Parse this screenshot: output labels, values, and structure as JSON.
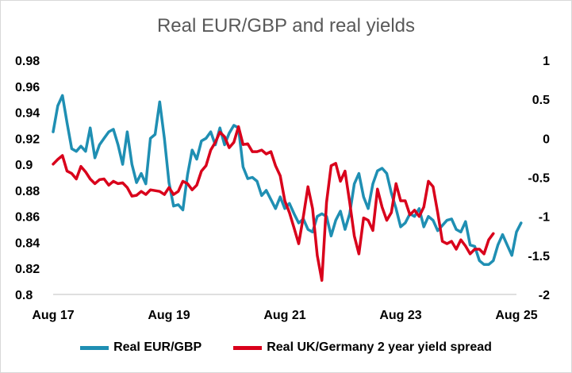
{
  "chart_data": {
    "type": "line",
    "title": "Real EUR/GBP and real yields",
    "x_ticks": [
      "Aug 17",
      "Aug 19",
      "Aug 21",
      "Aug 23",
      "Aug 25"
    ],
    "x_range": [
      "Aug 17",
      "Aug 25"
    ],
    "y_left": {
      "range": [
        0.8,
        0.98
      ],
      "ticks": [
        "0.98",
        "0.96",
        "0.94",
        "0.92",
        "0.9",
        "0.88",
        "0.86",
        "0.84",
        "0.82",
        "0.8"
      ]
    },
    "y_right": {
      "range": [
        -2,
        1
      ],
      "ticks": [
        "1",
        "0.5",
        "0",
        "-0.5",
        "-1",
        "-1.5",
        "-2"
      ]
    },
    "grid": false,
    "legend_position": "bottom",
    "series": [
      {
        "name": "Real EUR/GBP",
        "axis": "left",
        "color": "#1f8fb3",
        "points": [
          [
            0.0,
            0.925
          ],
          [
            0.25,
            0.945
          ],
          [
            0.5,
            0.953
          ],
          [
            0.75,
            0.932
          ],
          [
            1.0,
            0.912
          ],
          [
            1.25,
            0.91
          ],
          [
            1.5,
            0.914
          ],
          [
            1.75,
            0.91
          ],
          [
            2.0,
            0.928
          ],
          [
            2.25,
            0.905
          ],
          [
            2.5,
            0.915
          ],
          [
            2.75,
            0.92
          ],
          [
            3.0,
            0.925
          ],
          [
            3.25,
            0.927
          ],
          [
            3.5,
            0.915
          ],
          [
            3.75,
            0.9
          ],
          [
            4.0,
            0.925
          ],
          [
            4.25,
            0.9
          ],
          [
            4.5,
            0.886
          ],
          [
            4.75,
            0.893
          ],
          [
            5.0,
            0.885
          ],
          [
            5.25,
            0.92
          ],
          [
            5.5,
            0.923
          ],
          [
            5.75,
            0.948
          ],
          [
            6.0,
            0.92
          ],
          [
            6.25,
            0.886
          ],
          [
            6.5,
            0.868
          ],
          [
            6.75,
            0.869
          ],
          [
            7.0,
            0.865
          ],
          [
            7.25,
            0.892
          ],
          [
            7.5,
            0.911
          ],
          [
            7.75,
            0.904
          ],
          [
            8.0,
            0.918
          ],
          [
            8.25,
            0.92
          ],
          [
            8.5,
            0.925
          ],
          [
            8.75,
            0.915
          ],
          [
            9.0,
            0.928
          ],
          [
            9.25,
            0.915
          ],
          [
            9.5,
            0.924
          ],
          [
            9.75,
            0.93
          ],
          [
            10.0,
            0.928
          ],
          [
            10.25,
            0.898
          ],
          [
            10.5,
            0.889
          ],
          [
            10.75,
            0.89
          ],
          [
            11.0,
            0.887
          ],
          [
            11.25,
            0.876
          ],
          [
            11.5,
            0.88
          ],
          [
            11.75,
            0.873
          ],
          [
            12.0,
            0.866
          ],
          [
            12.25,
            0.875
          ],
          [
            12.5,
            0.866
          ],
          [
            12.75,
            0.87
          ],
          [
            13.0,
            0.862
          ],
          [
            13.25,
            0.855
          ],
          [
            13.5,
            0.858
          ],
          [
            13.75,
            0.85
          ],
          [
            14.0,
            0.848
          ],
          [
            14.25,
            0.86
          ],
          [
            14.5,
            0.862
          ],
          [
            14.75,
            0.86
          ],
          [
            15.0,
            0.845
          ],
          [
            15.25,
            0.857
          ],
          [
            15.5,
            0.864
          ],
          [
            15.75,
            0.85
          ],
          [
            16.0,
            0.862
          ],
          [
            16.25,
            0.885
          ],
          [
            16.5,
            0.893
          ],
          [
            16.75,
            0.875
          ],
          [
            17.0,
            0.866
          ],
          [
            17.25,
            0.885
          ],
          [
            17.5,
            0.895
          ],
          [
            17.75,
            0.897
          ],
          [
            18.0,
            0.893
          ],
          [
            18.25,
            0.878
          ],
          [
            18.5,
            0.866
          ],
          [
            18.75,
            0.852
          ],
          [
            19.0,
            0.855
          ],
          [
            19.25,
            0.862
          ],
          [
            19.5,
            0.86
          ],
          [
            19.75,
            0.866
          ],
          [
            20.0,
            0.852
          ],
          [
            20.25,
            0.86
          ],
          [
            20.5,
            0.857
          ],
          [
            20.75,
            0.849
          ],
          [
            21.0,
            0.853
          ],
          [
            21.25,
            0.857
          ],
          [
            21.5,
            0.858
          ],
          [
            21.75,
            0.85
          ],
          [
            22.0,
            0.848
          ],
          [
            22.25,
            0.856
          ],
          [
            22.5,
            0.838
          ],
          [
            22.75,
            0.837
          ],
          [
            23.0,
            0.826
          ],
          [
            23.25,
            0.823
          ],
          [
            23.5,
            0.823
          ],
          [
            23.75,
            0.826
          ],
          [
            24.0,
            0.838
          ],
          [
            24.25,
            0.846
          ],
          [
            24.5,
            0.838
          ],
          [
            24.75,
            0.83
          ],
          [
            25.0,
            0.848
          ],
          [
            25.25,
            0.855
          ]
        ]
      },
      {
        "name": "Real UK/Germany 2 year yield spread",
        "axis": "right",
        "color": "#d9001b",
        "points": [
          [
            0.0,
            -0.33
          ],
          [
            0.25,
            -0.27
          ],
          [
            0.5,
            -0.22
          ],
          [
            0.75,
            -0.42
          ],
          [
            1.0,
            -0.45
          ],
          [
            1.25,
            -0.52
          ],
          [
            1.5,
            -0.36
          ],
          [
            1.75,
            -0.43
          ],
          [
            2.0,
            -0.52
          ],
          [
            2.25,
            -0.58
          ],
          [
            2.5,
            -0.53
          ],
          [
            2.75,
            -0.52
          ],
          [
            3.0,
            -0.6
          ],
          [
            3.25,
            -0.55
          ],
          [
            3.5,
            -0.58
          ],
          [
            3.75,
            -0.57
          ],
          [
            4.0,
            -0.63
          ],
          [
            4.25,
            -0.74
          ],
          [
            4.5,
            -0.73
          ],
          [
            4.75,
            -0.68
          ],
          [
            5.0,
            -0.72
          ],
          [
            5.25,
            -0.66
          ],
          [
            5.5,
            -0.67
          ],
          [
            5.75,
            -0.68
          ],
          [
            6.0,
            -0.72
          ],
          [
            6.25,
            -0.63
          ],
          [
            6.5,
            -0.72
          ],
          [
            6.75,
            -0.68
          ],
          [
            7.0,
            -0.55
          ],
          [
            7.25,
            -0.58
          ],
          [
            7.5,
            -0.66
          ],
          [
            7.75,
            -0.6
          ],
          [
            8.0,
            -0.42
          ],
          [
            8.25,
            -0.35
          ],
          [
            8.5,
            -0.15
          ],
          [
            8.75,
            -0.05
          ],
          [
            9.0,
            0.08
          ],
          [
            9.25,
            0.02
          ],
          [
            9.5,
            -0.12
          ],
          [
            9.75,
            -0.05
          ],
          [
            10.0,
            0.15
          ],
          [
            10.25,
            -0.08
          ],
          [
            10.5,
            -0.07
          ],
          [
            10.75,
            -0.17
          ],
          [
            11.0,
            -0.17
          ],
          [
            11.25,
            -0.15
          ],
          [
            11.5,
            -0.2
          ],
          [
            11.75,
            -0.17
          ],
          [
            12.0,
            -0.35
          ],
          [
            12.25,
            -0.48
          ],
          [
            12.5,
            -0.8
          ],
          [
            12.75,
            -0.95
          ],
          [
            13.0,
            -1.15
          ],
          [
            13.25,
            -1.35
          ],
          [
            13.5,
            -1.0
          ],
          [
            13.75,
            -0.62
          ],
          [
            14.0,
            -0.9
          ],
          [
            14.25,
            -1.5
          ],
          [
            14.5,
            -1.82
          ],
          [
            14.75,
            -0.82
          ],
          [
            15.0,
            -0.35
          ],
          [
            15.25,
            -0.32
          ],
          [
            15.5,
            -0.55
          ],
          [
            15.75,
            -0.42
          ],
          [
            16.0,
            -0.82
          ],
          [
            16.25,
            -1.25
          ],
          [
            16.5,
            -1.48
          ],
          [
            16.75,
            -1.02
          ],
          [
            17.0,
            -1.05
          ],
          [
            17.25,
            -1.18
          ],
          [
            17.5,
            -0.65
          ],
          [
            17.75,
            -0.88
          ],
          [
            18.0,
            -1.05
          ],
          [
            18.25,
            -0.95
          ],
          [
            18.5,
            -0.58
          ],
          [
            18.75,
            -0.8
          ],
          [
            19.0,
            -0.8
          ],
          [
            19.25,
            -0.98
          ],
          [
            19.5,
            -0.92
          ],
          [
            19.75,
            -1.0
          ],
          [
            20.0,
            -0.88
          ],
          [
            20.25,
            -0.55
          ],
          [
            20.5,
            -0.62
          ],
          [
            20.75,
            -0.95
          ],
          [
            21.0,
            -1.32
          ],
          [
            21.25,
            -1.35
          ],
          [
            21.5,
            -1.32
          ],
          [
            21.75,
            -1.42
          ],
          [
            22.0,
            -1.3
          ],
          [
            22.25,
            -1.38
          ],
          [
            22.5,
            -1.48
          ],
          [
            22.75,
            -1.42
          ],
          [
            23.0,
            -1.42
          ],
          [
            23.25,
            -1.48
          ],
          [
            23.5,
            -1.3
          ],
          [
            23.75,
            -1.22
          ]
        ]
      }
    ]
  }
}
